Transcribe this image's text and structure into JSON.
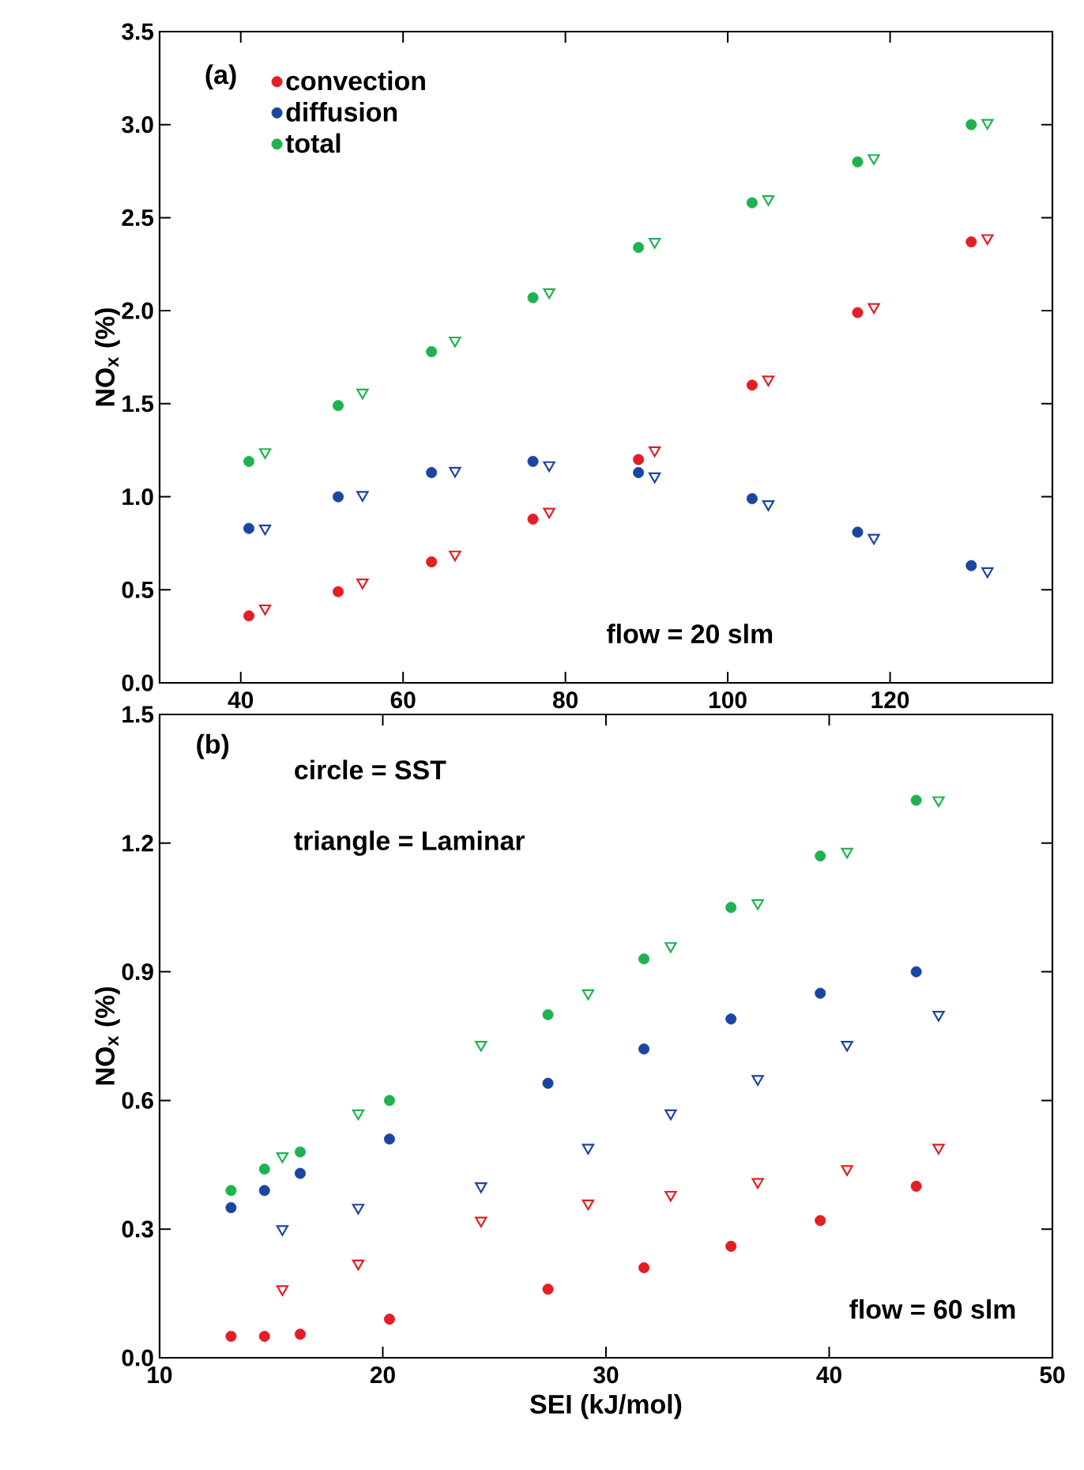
{
  "chart_data": [
    {
      "type": "scatter",
      "ylabel": "NO$_{x}$ (%)",
      "xlim": [
        30,
        140
      ],
      "xticks": [
        40,
        60,
        80,
        100,
        120
      ],
      "ylim": [
        0,
        3.5
      ],
      "yticks": [
        {
          "value": 0,
          "label": "0.0"
        },
        {
          "value": 0.5,
          "label": "0.5"
        },
        {
          "value": 1,
          "label": "1.0"
        },
        {
          "value": 1.5,
          "label": "1.5"
        },
        {
          "value": 2,
          "label": "2.0"
        },
        {
          "value": 2.5,
          "label": "2.5"
        },
        {
          "value": 3,
          "label": "3.0"
        },
        {
          "value": 3.5,
          "label": "3.5"
        }
      ],
      "legend": "top left",
      "annotations": [
        "(a)",
        "flow = 20 slm"
      ],
      "series": [
        {
          "name": "convection",
          "color": "#e31e24",
          "marker": "circle",
          "x": [
            41,
            52,
            63.5,
            76,
            89,
            103,
            116,
            130
          ],
          "values": [
            0.36,
            0.49,
            0.65,
            0.88,
            1.2,
            1.6,
            1.99,
            2.37
          ]
        },
        {
          "name": "diffusion",
          "color": "#1b45a0",
          "marker": "circle",
          "x": [
            41,
            52,
            63.5,
            76,
            89,
            103,
            116,
            130
          ],
          "values": [
            0.83,
            1.0,
            1.13,
            1.19,
            1.13,
            0.99,
            0.81,
            0.63
          ]
        },
        {
          "name": "total",
          "color": "#1fb250",
          "marker": "circle",
          "x": [
            41,
            52,
            63.5,
            76,
            89,
            103,
            116,
            130
          ],
          "values": [
            1.19,
            1.49,
            1.78,
            2.07,
            2.34,
            2.58,
            2.8,
            3.0
          ]
        },
        {
          "color": "#e31e24",
          "marker": "triangle",
          "x": [
            43,
            55,
            66.4,
            78,
            91,
            105,
            118,
            132
          ],
          "values": [
            0.4,
            0.54,
            0.69,
            0.92,
            1.25,
            1.63,
            2.02,
            2.39
          ]
        },
        {
          "color": "#1b45a0",
          "marker": "triangle",
          "x": [
            43,
            55,
            66.4,
            78,
            91,
            105,
            118,
            132
          ],
          "values": [
            0.83,
            1.01,
            1.14,
            1.17,
            1.11,
            0.96,
            0.78,
            0.6
          ]
        },
        {
          "color": "#1fb250",
          "marker": "triangle",
          "x": [
            43,
            55,
            66.4,
            78,
            91,
            105,
            118,
            132
          ],
          "values": [
            1.24,
            1.56,
            1.84,
            2.1,
            2.37,
            2.6,
            2.82,
            3.01
          ]
        }
      ]
    },
    {
      "type": "scatter",
      "xlabel": "SEI (kJ/mol)",
      "ylabel": "NO$_{x}$ (%)",
      "xlim": [
        10,
        50
      ],
      "xticks": [
        10,
        20,
        30,
        40,
        50
      ],
      "ylim": [
        0,
        1.5
      ],
      "yticks": [
        {
          "value": 0,
          "label": "0.0"
        },
        {
          "value": 0.3,
          "label": "0.3"
        },
        {
          "value": 0.6,
          "label": "0.6"
        },
        {
          "value": 0.9,
          "label": "0.9"
        },
        {
          "value": 1.2,
          "label": "1.2"
        },
        {
          "value": 1.5,
          "label": "1.5"
        }
      ],
      "annotations": [
        "(b)",
        "circle = SST",
        "triangle = Laminar",
        "flow = 60 slm"
      ],
      "series": [
        {
          "color": "#e31e24",
          "marker": "circle",
          "x": [
            13.2,
            14.7,
            16.3,
            20.3,
            27.4,
            31.7,
            35.6,
            39.6,
            43.9
          ],
          "values": [
            0.05,
            0.05,
            0.055,
            0.09,
            0.16,
            0.21,
            0.26,
            0.32,
            0.4
          ]
        },
        {
          "color": "#1b45a0",
          "marker": "circle",
          "x": [
            13.2,
            14.7,
            16.3,
            20.3,
            27.4,
            31.7,
            35.6,
            39.6,
            43.9
          ],
          "values": [
            0.35,
            0.39,
            0.43,
            0.51,
            0.64,
            0.72,
            0.79,
            0.85,
            0.9
          ]
        },
        {
          "color": "#1fb250",
          "marker": "circle",
          "x": [
            13.2,
            14.7,
            16.3,
            20.3,
            27.4,
            31.7,
            35.6,
            39.6,
            43.9
          ],
          "values": [
            0.39,
            0.44,
            0.48,
            0.6,
            0.8,
            0.93,
            1.05,
            1.17,
            1.3
          ]
        },
        {
          "color": "#e31e24",
          "marker": "triangle",
          "x": [
            15.5,
            18.9,
            24.4,
            29.2,
            32.9,
            36.8,
            40.8,
            44.9
          ],
          "values": [
            0.16,
            0.22,
            0.32,
            0.36,
            0.38,
            0.41,
            0.44,
            0.49
          ]
        },
        {
          "color": "#1b45a0",
          "marker": "triangle",
          "x": [
            15.5,
            18.9,
            24.4,
            29.2,
            32.9,
            36.8,
            40.8,
            44.9
          ],
          "values": [
            0.3,
            0.35,
            0.4,
            0.49,
            0.57,
            0.65,
            0.73,
            0.8
          ]
        },
        {
          "color": "#1fb250",
          "marker": "triangle",
          "x": [
            15.5,
            18.9,
            24.4,
            29.2,
            32.9,
            36.8,
            40.8,
            44.9
          ],
          "values": [
            0.47,
            0.57,
            0.73,
            0.85,
            0.96,
            1.06,
            1.18,
            1.3
          ]
        }
      ]
    }
  ]
}
